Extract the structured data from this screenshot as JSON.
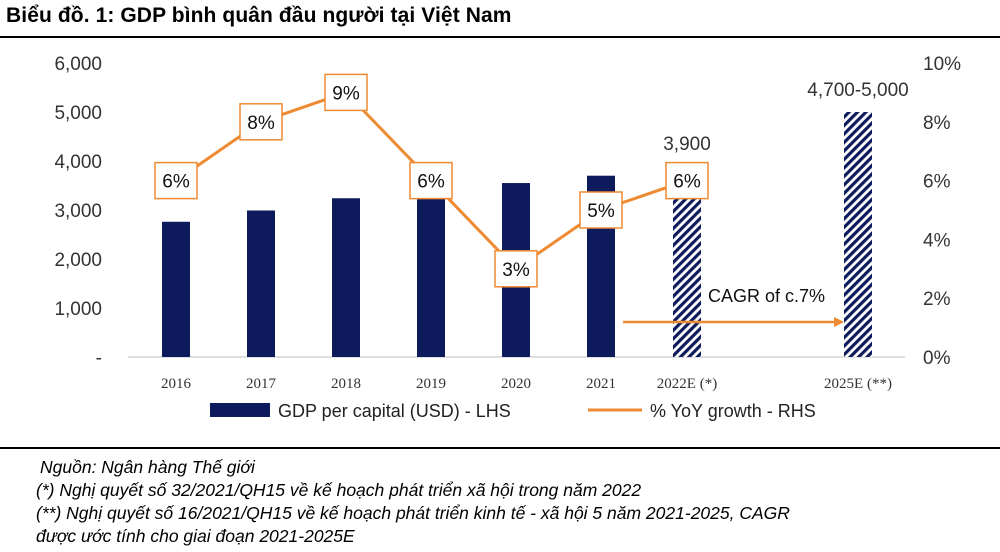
{
  "title": "Biểu đồ. 1: GDP bình quân đầu người tại Việt Nam",
  "chart_data": {
    "type": "bar",
    "categories": [
      "2016",
      "2017",
      "2018",
      "2019",
      "2020",
      "2021",
      "2022E (*)",
      "2025E (**)"
    ],
    "series": [
      {
        "name": "GDP per capital (USD) - LHS",
        "type": "bar",
        "axis": "left",
        "values": [
          2760,
          2990,
          3240,
          3420,
          3550,
          3700,
          3900,
          5000
        ],
        "projected": [
          false,
          false,
          false,
          false,
          false,
          false,
          true,
          true
        ],
        "value_labels": [
          "",
          "",
          "",
          "",
          "",
          "",
          "3,900",
          "4,700-5,000"
        ],
        "color": "#0d1b5c"
      },
      {
        "name": "% YoY growth - RHS",
        "type": "line",
        "axis": "right",
        "values": [
          6,
          8,
          9,
          6,
          3,
          5,
          6,
          null
        ],
        "value_labels": [
          "6%",
          "8%",
          "9%",
          "6%",
          "3%",
          "5%",
          "6%",
          ""
        ],
        "color": "#ee8a32"
      }
    ],
    "left_axis": {
      "ylim": [
        0,
        6000
      ],
      "ticks": [
        "-",
        "1,000",
        "2,000",
        "3,000",
        "4,000",
        "5,000",
        "6,000"
      ]
    },
    "right_axis": {
      "ylim": [
        0,
        10
      ],
      "ticks": [
        "0%",
        "2%",
        "4%",
        "6%",
        "8%",
        "10%"
      ]
    },
    "annotation": {
      "text": "CAGR of c.7%",
      "from": "2022E (*)",
      "to": "2025E (**)"
    },
    "grid": false,
    "legend": "bottom"
  },
  "notes": {
    "source": "Nguồn: Ngân hàng Thế giới",
    "note1": "(*) Nghị quyết số 32/2021/QH15 về kế hoạch phát triển xã hội trong năm 2022",
    "note2": "(**) Nghị quyết số 16/2021/QH15 về kế hoạch phát triển kinh tế - xã hội 5 năm 2021-2025, CAGR",
    "note3": "được ước tính cho giai đoạn 2021-2025E"
  }
}
